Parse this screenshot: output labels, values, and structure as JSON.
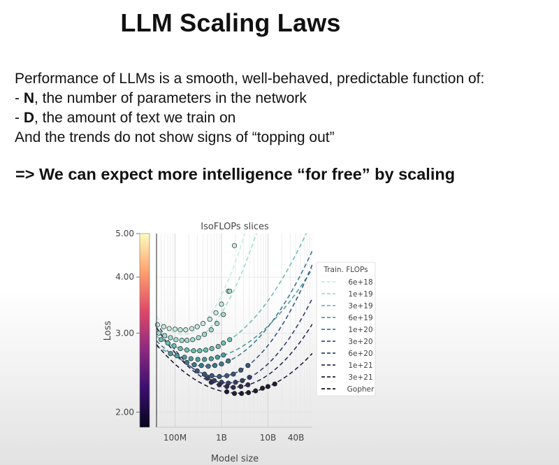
{
  "slide": {
    "title": "LLM Scaling Laws",
    "intro": "Performance of LLMs is a smooth, well-behaved, predictable function of:",
    "bullets": [
      {
        "prefix": "- ",
        "bold": "N",
        "rest": ", the number of parameters in the network"
      },
      {
        "prefix": "- ",
        "bold": "D",
        "rest": ", the amount of text we train on"
      }
    ],
    "trend_note": "And the trends do not show signs of “topping out”",
    "conclusion": "=> We can expect more intelligence “for free” by scaling"
  },
  "chart_data": {
    "type": "scatter",
    "title": "IsoFLOPs slices",
    "xlabel": "Model size",
    "ylabel": "Loss",
    "x_scale": "log",
    "y_scale": "log",
    "xlim": [
      40000000,
      90000000000
    ],
    "ylim": [
      1.85,
      5.0
    ],
    "x_ticks": [
      {
        "value": 100000000,
        "label": "100M"
      },
      {
        "value": 1000000000,
        "label": "1B"
      },
      {
        "value": 10000000000,
        "label": "10B"
      },
      {
        "value": 40000000000,
        "label": "40B"
      }
    ],
    "y_ticks": [
      {
        "value": 2.0,
        "label": "2.00"
      },
      {
        "value": 3.0,
        "label": "3.00"
      },
      {
        "value": 4.0,
        "label": "4.00"
      },
      {
        "value": 5.0,
        "label": "5.00"
      }
    ],
    "grid": true,
    "legend_title": "Train. FLOPs",
    "legend_position": "right",
    "colormap": [
      "#06051a",
      "#3b0f70",
      "#8c2981",
      "#de4968",
      "#fe9f6d",
      "#fcfdbf"
    ],
    "series": [
      {
        "name": "6e+18",
        "color": "#c5ece2",
        "dots": [
          [
            42000000,
            3.13
          ],
          [
            57000000,
            3.1
          ],
          [
            75000000,
            3.07
          ],
          [
            100000000,
            3.06
          ],
          [
            130000000,
            3.05
          ],
          [
            170000000,
            3.05
          ],
          [
            230000000,
            3.07
          ],
          [
            300000000,
            3.1
          ],
          [
            400000000,
            3.15
          ],
          [
            560000000,
            3.22
          ],
          [
            760000000,
            3.33
          ],
          [
            1000000000,
            3.48
          ],
          [
            1400000000,
            3.72
          ],
          [
            1900000000,
            4.7
          ]
        ]
      },
      {
        "name": "1e+19",
        "color": "#9fdccd",
        "dots": [
          [
            45000000,
            3.0
          ],
          [
            60000000,
            2.96
          ],
          [
            80000000,
            2.93
          ],
          [
            105000000,
            2.9
          ],
          [
            140000000,
            2.89
          ],
          [
            180000000,
            2.89
          ],
          [
            240000000,
            2.9
          ],
          [
            320000000,
            2.93
          ],
          [
            430000000,
            2.98
          ],
          [
            600000000,
            3.05
          ],
          [
            800000000,
            3.15
          ],
          [
            1100000000,
            3.3
          ],
          [
            1500000000,
            3.72
          ]
        ]
      },
      {
        "name": "3e+19",
        "color": "#6cbfb0",
        "dots": [
          [
            50000000,
            2.9
          ],
          [
            70000000,
            2.85
          ],
          [
            95000000,
            2.81
          ],
          [
            130000000,
            2.77
          ],
          [
            180000000,
            2.75
          ],
          [
            250000000,
            2.74
          ],
          [
            340000000,
            2.74
          ],
          [
            460000000,
            2.75
          ],
          [
            620000000,
            2.77
          ],
          [
            850000000,
            2.8
          ],
          [
            1100000000,
            2.85
          ],
          [
            1500000000,
            2.9
          ]
        ]
      },
      {
        "name": "6e+19",
        "color": "#4e9c99",
        "dots": [
          [
            80000000,
            2.7
          ],
          [
            110000000,
            2.67
          ],
          [
            160000000,
            2.65
          ],
          [
            220000000,
            2.63
          ],
          [
            310000000,
            2.62
          ],
          [
            430000000,
            2.62
          ],
          [
            600000000,
            2.63
          ],
          [
            820000000,
            2.65
          ],
          [
            1100000000,
            2.68
          ]
        ]
      },
      {
        "name": "1e+20",
        "color": "#3f7890",
        "dots": [
          [
            180000000,
            2.58
          ],
          [
            260000000,
            2.55
          ],
          [
            370000000,
            2.54
          ],
          [
            520000000,
            2.53
          ],
          [
            720000000,
            2.54
          ],
          [
            1000000000,
            2.56
          ],
          [
            1400000000,
            2.6
          ]
        ]
      },
      {
        "name": "3e+20",
        "color": "#39567f",
        "dots": [
          [
            300000000,
            2.47
          ],
          [
            430000000,
            2.43
          ],
          [
            620000000,
            2.41
          ],
          [
            900000000,
            2.4
          ],
          [
            1300000000,
            2.41
          ],
          [
            1800000000,
            2.43
          ],
          [
            2600000000,
            2.48
          ],
          [
            3700000000,
            2.54
          ]
        ]
      },
      {
        "name": "6e+20",
        "color": "#353f6b",
        "dots": [
          [
            500000000,
            2.38
          ],
          [
            700000000,
            2.35
          ],
          [
            1000000000,
            2.33
          ],
          [
            1400000000,
            2.32
          ],
          [
            2000000000,
            2.33
          ],
          [
            2800000000,
            2.35
          ],
          [
            4000000000,
            2.39
          ]
        ]
      },
      {
        "name": "1e+21",
        "color": "#2e2c55",
        "dots": [
          [
            600000000,
            2.33
          ],
          [
            900000000,
            2.3
          ],
          [
            1300000000,
            2.28
          ],
          [
            1800000000,
            2.27
          ],
          [
            2600000000,
            2.28
          ],
          [
            3700000000,
            2.3
          ]
        ]
      },
      {
        "name": "3e+21",
        "color": "#201c35",
        "dots": [
          [
            1300000000,
            2.22
          ],
          [
            1900000000,
            2.2
          ],
          [
            2700000000,
            2.2
          ],
          [
            3800000000,
            2.21
          ],
          [
            5400000000,
            2.23
          ],
          [
            7600000000,
            2.26
          ],
          [
            10000000000,
            2.28
          ],
          [
            14000000000,
            2.31
          ]
        ]
      },
      {
        "name": "Gopher",
        "color": "#111111",
        "dots": []
      }
    ]
  }
}
